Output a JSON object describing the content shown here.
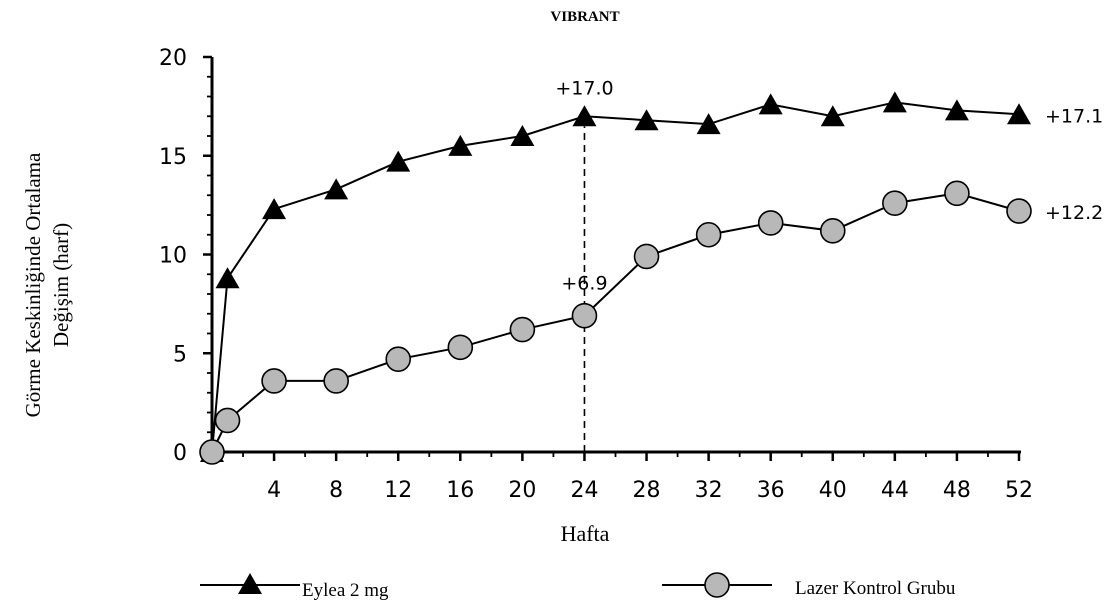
{
  "chart_data": {
    "type": "line",
    "title": "VIBRANT",
    "xlabel": "Hafta",
    "ylabel_line1": "Görme Keskinliğinde Ortalama",
    "ylabel_line2": "Değişim (harf)",
    "xlim": [
      0,
      52
    ],
    "ylim": [
      0,
      20
    ],
    "x_ticks": [
      "4",
      "8",
      "12",
      "16",
      "20",
      "24",
      "28",
      "32",
      "36",
      "40",
      "44",
      "48",
      "52"
    ],
    "y_ticks": [
      "0",
      "5",
      "10",
      "15",
      "20"
    ],
    "grid": false,
    "legend_position": "bottom",
    "series": [
      {
        "name": "Eylea 2 mg",
        "marker": "triangle",
        "color": "#000000",
        "x": [
          0,
          1,
          4,
          8,
          12,
          16,
          20,
          24,
          28,
          32,
          36,
          40,
          44,
          48,
          52
        ],
        "y": [
          0,
          8.8,
          12.3,
          13.3,
          14.7,
          15.5,
          16.0,
          17.0,
          16.8,
          16.6,
          17.6,
          17.0,
          17.7,
          17.3,
          17.1
        ]
      },
      {
        "name": "Lazer Kontrol Grubu",
        "marker": "circle",
        "color": "#b8b8b8",
        "x": [
          0,
          1,
          4,
          8,
          12,
          16,
          20,
          24,
          28,
          32,
          36,
          40,
          44,
          48,
          52
        ],
        "y": [
          0,
          1.6,
          3.6,
          3.6,
          4.7,
          5.3,
          6.2,
          6.9,
          9.9,
          11.0,
          11.6,
          11.2,
          12.6,
          13.1,
          12.2
        ]
      }
    ],
    "annotations": [
      {
        "text": "+17.0",
        "x": 24,
        "y": 17.0
      },
      {
        "text": "+6.9",
        "x": 24,
        "y": 6.9
      },
      {
        "text": "+17.1",
        "x": 52,
        "y": 17.1
      },
      {
        "text": "+12.2",
        "x": 52,
        "y": 12.2
      }
    ],
    "reference_line": {
      "x": 24,
      "style": "dashed"
    }
  }
}
